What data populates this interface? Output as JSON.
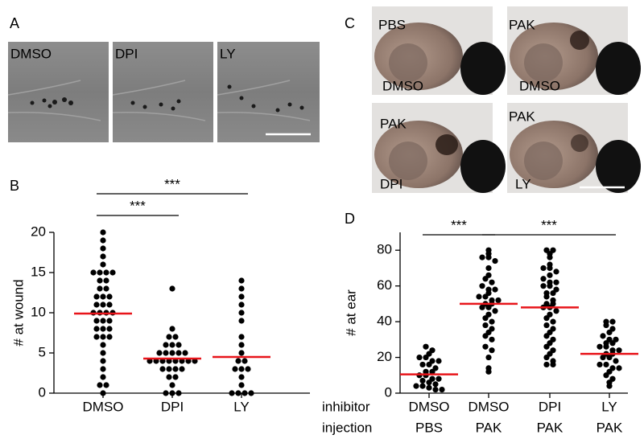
{
  "panel_labels": [
    "A",
    "B",
    "C",
    "D"
  ],
  "panel_a_images": [
    "DMSO",
    "DPI",
    "LY"
  ],
  "panel_c_images": [
    [
      "PBS",
      "DMSO"
    ],
    [
      "PAK",
      "DMSO"
    ],
    [
      "PAK",
      "DPI"
    ],
    [
      "PAK",
      "LY"
    ]
  ],
  "chart_data": [
    {
      "type": "dot",
      "y_label": "# at wound",
      "categories": [
        "DMSO",
        "DPI",
        "LY"
      ],
      "groups": [
        {
          "values": [
            20,
            19,
            18,
            17,
            16,
            15,
            15,
            15,
            15,
            14,
            14,
            13,
            13,
            12,
            12,
            12,
            11,
            11,
            11,
            10,
            10,
            10,
            10,
            9,
            9,
            9,
            8,
            8,
            8,
            7,
            7,
            7,
            6,
            5,
            4,
            3,
            2,
            1,
            1,
            0
          ],
          "median": 9.9
        },
        {
          "values": [
            13,
            8,
            7,
            7,
            6,
            6,
            6,
            5,
            5,
            5,
            5,
            5,
            4,
            4,
            4,
            4,
            4,
            4,
            4,
            4,
            3,
            3,
            3,
            3,
            2,
            2,
            1,
            0,
            0,
            0
          ],
          "median": 4.3
        },
        {
          "values": [
            14,
            13,
            12,
            11,
            10,
            9,
            7,
            6,
            5,
            4,
            4,
            3,
            3,
            3,
            2,
            1,
            0,
            0,
            0,
            0
          ],
          "median": 4.5
        }
      ],
      "color": "#000000",
      "median_color": "#e8141a",
      "ylim": [
        0,
        20
      ],
      "yticks": [
        0,
        5,
        10,
        15,
        20
      ],
      "annotations": [
        {
          "label": "***",
          "from": 0,
          "to": 1
        },
        {
          "label": "***",
          "from": 0,
          "to": 2
        }
      ]
    },
    {
      "type": "dot",
      "y_label": "# at ear",
      "category_rows": [
        "inhibitor",
        "injection"
      ],
      "categories": [
        [
          "DMSO",
          "PBS"
        ],
        [
          "DMSO",
          "PAK"
        ],
        [
          "DPI",
          "PAK"
        ],
        [
          "LY",
          "PAK"
        ]
      ],
      "groups": [
        {
          "values": [
            26,
            24,
            22,
            20,
            20,
            18,
            18,
            16,
            16,
            14,
            12,
            12,
            10,
            10,
            8,
            8,
            7,
            6,
            5,
            4,
            4,
            3,
            2,
            2
          ],
          "median": 10.5
        },
        {
          "values": [
            80,
            78,
            76,
            76,
            74,
            70,
            66,
            64,
            62,
            60,
            58,
            58,
            56,
            54,
            54,
            52,
            52,
            50,
            50,
            48,
            48,
            46,
            44,
            42,
            40,
            38,
            36,
            34,
            32,
            30,
            26,
            24,
            20,
            14,
            12
          ],
          "median": 50
        },
        {
          "values": [
            80,
            80,
            78,
            76,
            72,
            70,
            70,
            68,
            66,
            64,
            62,
            62,
            60,
            60,
            58,
            56,
            56,
            54,
            52,
            50,
            50,
            48,
            48,
            46,
            44,
            42,
            40,
            38,
            36,
            34,
            32,
            30,
            28,
            26,
            24,
            22,
            20,
            18,
            16,
            16
          ],
          "median": 48
        },
        {
          "values": [
            40,
            40,
            38,
            36,
            34,
            32,
            30,
            30,
            28,
            28,
            26,
            26,
            24,
            24,
            22,
            22,
            20,
            20,
            18,
            16,
            16,
            14,
            14,
            12,
            10,
            8,
            6,
            4
          ],
          "median": 22
        }
      ],
      "color": "#000000",
      "median_color": "#e8141a",
      "ylim": [
        0,
        90
      ],
      "yticks": [
        0,
        20,
        40,
        60,
        80
      ],
      "annotations": [
        {
          "label": "***",
          "from": 0,
          "to": 1
        },
        {
          "label": "***",
          "from": 1,
          "to": 3
        }
      ]
    }
  ]
}
